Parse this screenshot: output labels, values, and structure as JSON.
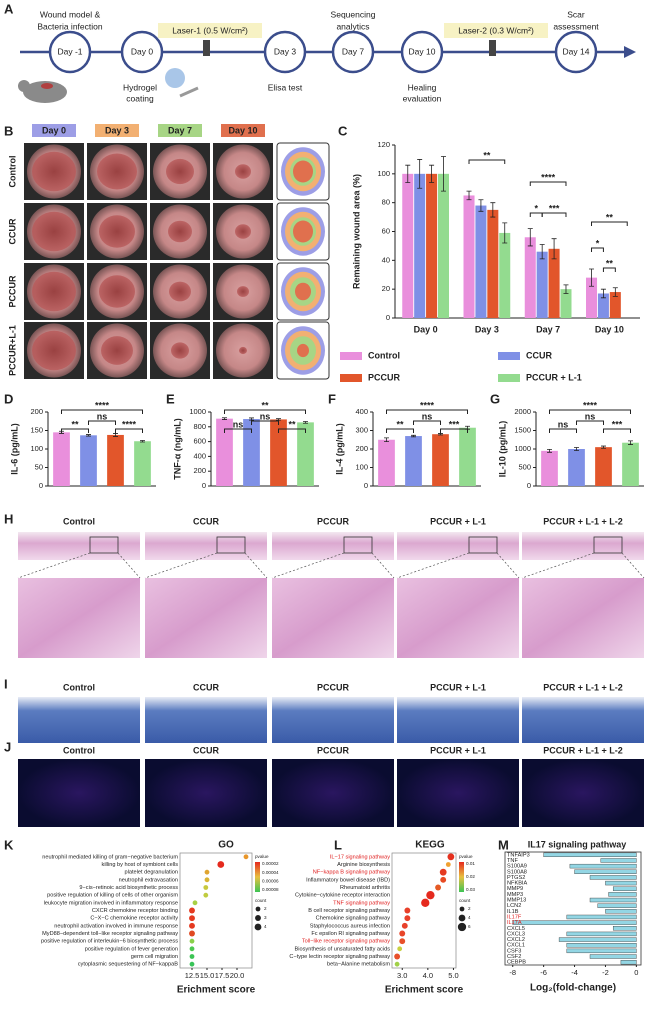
{
  "panel_labels": [
    "A",
    "B",
    "C",
    "D",
    "E",
    "F",
    "G",
    "H",
    "I",
    "J",
    "K",
    "L",
    "M"
  ],
  "timeline": {
    "days": [
      "Day -1",
      "Day 0",
      "Day 3",
      "Day 7",
      "Day 10",
      "Day 14"
    ],
    "notes": [
      "Wound model &",
      "Bacteria infection",
      "Hydrogel",
      "coating",
      "Laser-1 (0.5 W/cm²)",
      "Elisa test",
      "Sequencing",
      "analytics",
      "Healing",
      "evaluation",
      "Laser-2 (0.3 W/cm²)",
      "Scar",
      "assessment"
    ]
  },
  "photos": {
    "columns": [
      "Day 0",
      "Day 3",
      "Day 7",
      "Day 10"
    ],
    "rows": [
      "Control",
      "CCUR",
      "PCCUR",
      "PCCUR+L-1"
    ]
  },
  "histology": {
    "groups": [
      "Control",
      "CCUR",
      "PCCUR",
      "PCCUR + L-1",
      "PCCUR + L-1 + L-2"
    ]
  },
  "chart_data": [
    {
      "type": "bar",
      "ylabel": "Remaining wound area (%)",
      "categories": [
        "Day 0",
        "Day 3",
        "Day 7",
        "Day 10"
      ],
      "ylim": [
        0,
        120
      ],
      "yticks": [
        0,
        20,
        40,
        60,
        80,
        100,
        120
      ],
      "series": [
        {
          "name": "Control",
          "color": "#e98fdc",
          "values": [
            100,
            85,
            56,
            28
          ],
          "errors": [
            6,
            3,
            6,
            6
          ]
        },
        {
          "name": "CCUR",
          "color": "#7f90e6",
          "values": [
            100,
            78,
            46,
            17
          ],
          "errors": [
            10,
            4,
            5,
            3
          ]
        },
        {
          "name": "PCCUR",
          "color": "#e2562b",
          "values": [
            100,
            75,
            48,
            18
          ],
          "errors": [
            6,
            5,
            7,
            3
          ]
        },
        {
          "name": "PCCUR + L-1",
          "color": "#93db8f",
          "values": [
            100,
            59,
            20,
            null
          ],
          "errors": [
            12,
            7,
            3,
            null
          ]
        }
      ],
      "annotations": [
        "**",
        "****",
        "*",
        "***",
        "**",
        "*",
        "**"
      ]
    },
    {
      "type": "bar",
      "ylabel": "IL-6 (pg/mL)",
      "ylim": [
        0,
        200
      ],
      "yticks": [
        0,
        50,
        100,
        150,
        200
      ],
      "values": [
        145,
        137,
        138,
        121
      ],
      "errors": [
        3,
        2,
        4,
        2
      ],
      "colors": [
        "#e98fdc",
        "#7f90e6",
        "#e2562b",
        "#93db8f"
      ],
      "annotations": [
        "****",
        "**",
        "ns",
        "****"
      ]
    },
    {
      "type": "bar",
      "ylabel": "TNF-α (ng/mL)",
      "ylim": [
        0,
        1000
      ],
      "yticks": [
        0,
        200,
        400,
        600,
        800,
        1000
      ],
      "values": [
        910,
        905,
        900,
        860
      ],
      "errors": [
        12,
        15,
        10,
        12
      ],
      "colors": [
        "#e98fdc",
        "#7f90e6",
        "#e2562b",
        "#93db8f"
      ],
      "annotations": [
        "**",
        "ns",
        "ns",
        "**"
      ]
    },
    {
      "type": "bar",
      "ylabel": "IL-4 (pg/mL)",
      "ylim": [
        0,
        400
      ],
      "yticks": [
        0,
        100,
        200,
        300,
        400
      ],
      "values": [
        250,
        270,
        280,
        315
      ],
      "errors": [
        10,
        4,
        4,
        8
      ],
      "colors": [
        "#e98fdc",
        "#7f90e6",
        "#e2562b",
        "#93db8f"
      ],
      "annotations": [
        "****",
        "**",
        "ns",
        "***"
      ]
    },
    {
      "type": "bar",
      "ylabel": "IL-10 (pg/mL)",
      "ylim": [
        0,
        2000
      ],
      "yticks": [
        0,
        500,
        1000,
        1500,
        2000
      ],
      "values": [
        950,
        1000,
        1050,
        1170
      ],
      "errors": [
        40,
        40,
        30,
        50
      ],
      "colors": [
        "#e98fdc",
        "#7f90e6",
        "#e2562b",
        "#93db8f"
      ],
      "annotations": [
        "****",
        "ns",
        "ns",
        "***"
      ]
    },
    {
      "type": "scatter",
      "title": "GO",
      "xlabel": "Erichment score",
      "terms": [
        "neutrophil mediated killing of gram−negative bacterium",
        "killing by host of symbiont cells",
        "platelet degranulation",
        "neutrophil extravasation",
        "9−cis−retinoic acid biosynthetic process",
        "positive regulation of killing of cells of other organism",
        "leukocyte migration involved in inflammatory response",
        "CXCR chemokine receptor binding",
        "C−X−C chemokine receptor activity",
        "neutrophil activation involved in immune response",
        "MyD88−dependent toll−like receptor signaling pathway",
        "positive regulation of interleukin−6 biosynthetic process",
        "positive regulation of fever generation",
        "germ cell migration",
        "cytoplasmic sequestering of NF−kappaB"
      ],
      "values": [
        21.5,
        17.3,
        15.0,
        15.0,
        14.8,
        14.8,
        13.0,
        12.5,
        12.5,
        12.5,
        12.5,
        12.5,
        12.5,
        12.5,
        12.5
      ],
      "counts": [
        2,
        4,
        2,
        2,
        2,
        2,
        2,
        3,
        3,
        3,
        3,
        2,
        2,
        2,
        2
      ],
      "colors": [
        "#e8962a",
        "#e52a1e",
        "#e0a530",
        "#d9b435",
        "#c8c83c",
        "#c0cc40",
        "#a8d044",
        "#e53a20",
        "#e53a20",
        "#e53a20",
        "#e04a22",
        "#8ad04a",
        "#4cc850",
        "#3cc454",
        "#38c458"
      ],
      "xlim": [
        10.5,
        22.5
      ],
      "xticks": [
        12.5,
        {
          "value": 15,
          "label": "15.0"
        },
        17.5,
        {
          "value": 20,
          "label": "20.0"
        }
      ],
      "legend": {
        "pvalue_title": "pvalue",
        "pvalue_labels": [
          "0.00002",
          "0.00004",
          "0.00006",
          "0.00008"
        ],
        "count_title": "count",
        "count_labels": [
          2,
          3,
          4
        ]
      }
    },
    {
      "type": "scatter",
      "title": "KEGG",
      "xlabel": "Erichment score",
      "terms": [
        "IL−17 signaling pathway",
        "Arginine biosynthesis",
        "NF−kappa B signaling pathway",
        "Inflammatory bowel disease (IBD)",
        "Rheumatoid arthritis",
        "Cytokine−cytokine receptor interaction",
        "TNF signaling pathway",
        "B cell receptor signaling pathway",
        "Chemokine signaling pathway",
        "Staphylococcus aureus infection",
        "Fc epsilon RI signaling pathway",
        "Toll−like receptor signaling pathway",
        "Biosynthesis of unsaturated fatty acids",
        "C−type lectin receptor signaling pathway",
        "beta−Alanine metabolism"
      ],
      "label_colors": [
        "#e02020",
        "#222222",
        "#e02020",
        "#222222",
        "#222222",
        "#222222",
        "#e02020",
        "#222222",
        "#222222",
        "#222222",
        "#222222",
        "#e02020",
        "#222222",
        "#222222",
        "#222222"
      ],
      "values": [
        4.9,
        4.8,
        4.6,
        4.6,
        4.4,
        4.1,
        3.9,
        3.2,
        3.2,
        3.1,
        3.0,
        3.0,
        2.9,
        2.8,
        2.8
      ],
      "counts": [
        4,
        2,
        4,
        3,
        3,
        6,
        6,
        3,
        3,
        3,
        3,
        3,
        2,
        3,
        2
      ],
      "colors": [
        "#e5301e",
        "#f0a030",
        "#e53a20",
        "#e84a22",
        "#e55a24",
        "#e52a1e",
        "#e52a1e",
        "#e8402a",
        "#e8402a",
        "#e8402a",
        "#e8462a",
        "#e8502a",
        "#c8d040",
        "#e8502a",
        "#a0d048"
      ],
      "xlim": [
        2.6,
        5.1
      ],
      "xticks": [
        {
          "value": 3,
          "label": "3.0"
        },
        {
          "value": 4,
          "label": "4.0"
        },
        {
          "value": 5,
          "label": "5.0"
        }
      ],
      "legend": {
        "pvalue_title": "pvalue",
        "pvalue_labels": [
          "0.01",
          "0.02",
          "0.03"
        ],
        "count_title": "count",
        "count_labels": [
          2,
          4,
          6
        ]
      }
    },
    {
      "type": "barh",
      "title": "IL17 signaling pathway",
      "xlabel": "Log₂(fold-change)",
      "categories": [
        "TNFAIP3",
        "TNF",
        "S100A9",
        "S100A8",
        "PTGS2",
        "NFKBIA",
        "MMP9",
        "MMP3",
        "MMP13",
        "LCN2",
        "IL1B",
        "IL17F",
        "IL17A",
        "CXCL5",
        "CXCL3",
        "CXCL2",
        "CXCL1",
        "CSF3",
        "CSF2",
        "CEBPB"
      ],
      "label_colors": [
        "#222222",
        "#222222",
        "#222222",
        "#222222",
        "#222222",
        "#222222",
        "#222222",
        "#222222",
        "#222222",
        "#222222",
        "#222222",
        "#e02020",
        "#e02020",
        "#222222",
        "#222222",
        "#222222",
        "#222222",
        "#222222",
        "#222222",
        "#222222"
      ],
      "values": [
        -6,
        -2.3,
        -4.3,
        -4,
        -3,
        -2,
        -1.5,
        -1.8,
        -3,
        -2.5,
        -2,
        -4.5,
        -8,
        -1.5,
        -4.5,
        -5,
        -4.5,
        -4.5,
        -3,
        -1
      ],
      "color": "#93d6e4",
      "xlim": [
        -8.5,
        0.3
      ],
      "xticks": [
        -8,
        -6,
        -4,
        -2,
        0
      ]
    }
  ]
}
